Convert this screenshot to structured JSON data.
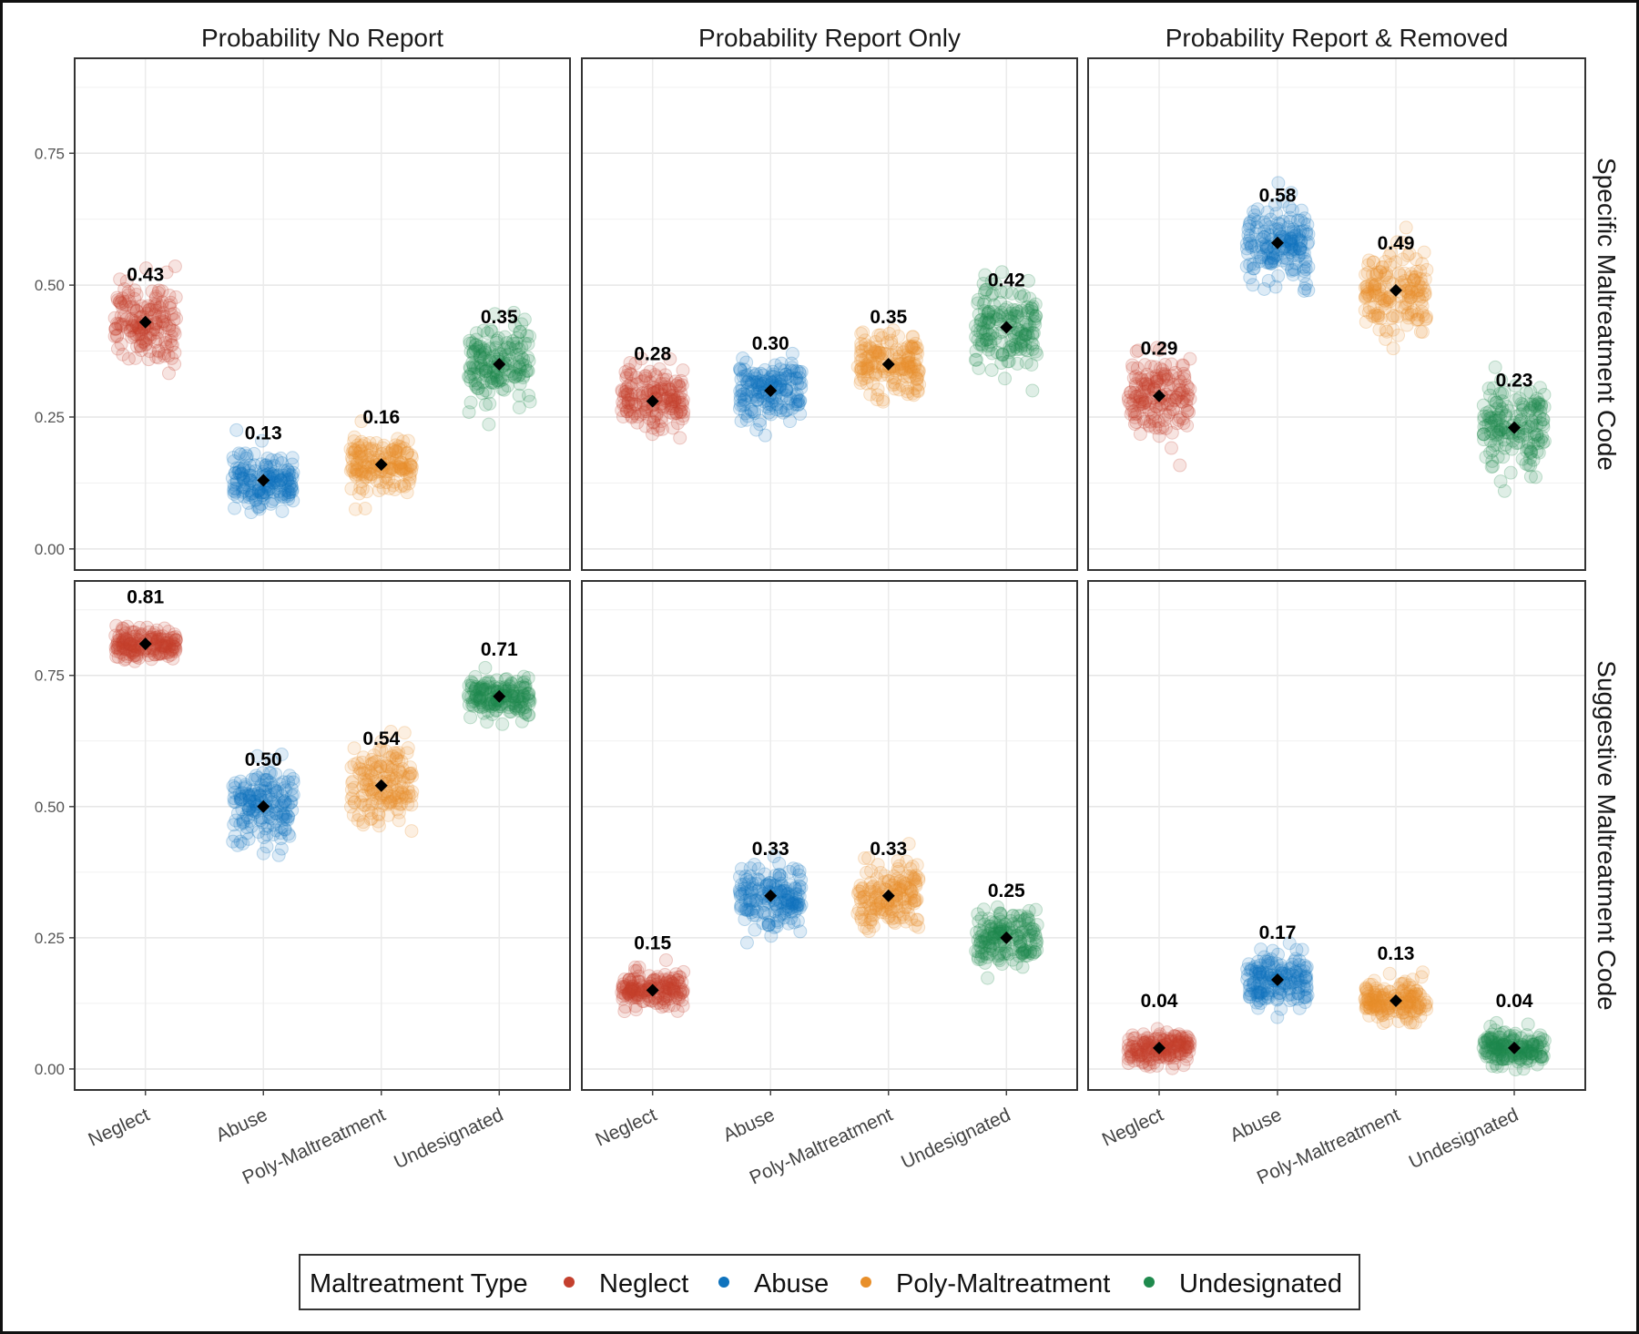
{
  "chart_data": {
    "type": "scatter",
    "subtype": "faceted jitter plot with mean markers",
    "columns": [
      "Probability No Report",
      "Probability Report Only",
      "Probability Report & Removed"
    ],
    "rows": [
      "Specific Maltreatment Code",
      "Suggestive Maltreatment Code"
    ],
    "categories": [
      "Neglect",
      "Abuse",
      "Poly-Maltreatment",
      "Undesignated"
    ],
    "colors": {
      "Neglect": "#c4402e",
      "Abuse": "#0f73bd",
      "Poly-Maltreatment": "#e88f2a",
      "Undesignated": "#1f8a4d"
    },
    "ylim": [
      -0.04,
      0.93
    ],
    "yticks": [
      "0.00",
      "0.25",
      "0.50",
      "0.75"
    ],
    "ytick_values": [
      0,
      0.25,
      0.5,
      0.75
    ],
    "grid": true,
    "means": [
      [
        [
          "0.43",
          "0.13",
          "0.16",
          "0.35"
        ],
        [
          "0.28",
          "0.30",
          "0.35",
          "0.42"
        ],
        [
          "0.29",
          "0.58",
          "0.49",
          "0.23"
        ]
      ],
      [
        [
          "0.81",
          "0.50",
          "0.54",
          "0.71"
        ],
        [
          "0.15",
          "0.33",
          "0.33",
          "0.25"
        ],
        [
          "0.04",
          "0.17",
          "0.13",
          "0.04"
        ]
      ]
    ],
    "spread_sd_estimate": [
      [
        [
          0.04,
          0.025,
          0.025,
          0.04
        ],
        [
          0.03,
          0.03,
          0.03,
          0.04
        ],
        [
          0.035,
          0.035,
          0.035,
          0.04
        ]
      ],
      [
        [
          0.015,
          0.035,
          0.04,
          0.02
        ],
        [
          0.015,
          0.03,
          0.03,
          0.025
        ],
        [
          0.015,
          0.025,
          0.02,
          0.015
        ]
      ]
    ],
    "legend": {
      "title": "Maltreatment Type",
      "entries": [
        "Neglect",
        "Abuse",
        "Poly-Maltreatment",
        "Undesignated"
      ],
      "placement": "bottom"
    }
  }
}
